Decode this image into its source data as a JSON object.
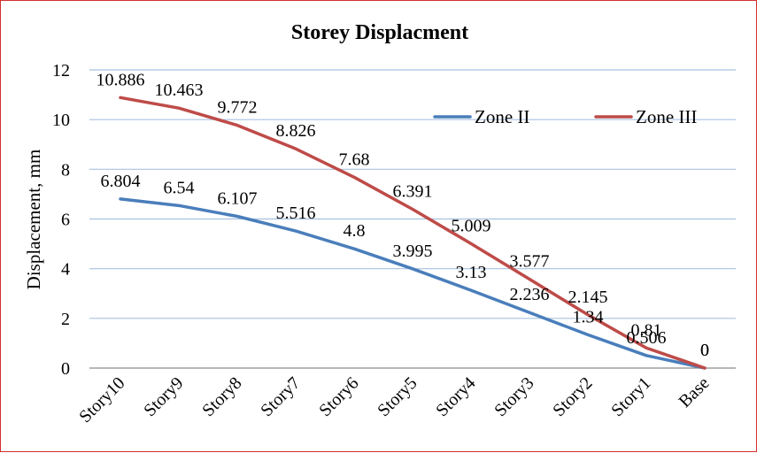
{
  "chart_data": {
    "type": "line",
    "title": "Storey Displacment",
    "xlabel": "",
    "ylabel": "Displacement, mm",
    "categories": [
      "Story10",
      "Story9",
      "Story8",
      "Story7",
      "Story6",
      "Story5",
      "Story4",
      "Story3",
      "Story2",
      "Story1",
      "Base"
    ],
    "ylim": [
      0,
      12
    ],
    "yticks": [
      0,
      2,
      4,
      6,
      8,
      10,
      12
    ],
    "grid": true,
    "legend_position": "top-right",
    "series": [
      {
        "name": "Zone II",
        "color": "#4a7ebb",
        "values": [
          6.804,
          6.54,
          6.107,
          5.516,
          4.8,
          3.995,
          3.13,
          2.236,
          1.34,
          0.506,
          0
        ],
        "labels": [
          "6.804",
          "6.54",
          "6.107",
          "5.516",
          "4.8",
          "3.995",
          "3.13",
          "2.236",
          "1.34",
          "0.506",
          "0"
        ]
      },
      {
        "name": "Zone III",
        "color": "#be4b48",
        "values": [
          10.886,
          10.463,
          9.772,
          8.826,
          7.68,
          6.391,
          5.009,
          3.577,
          2.145,
          0.81,
          0
        ],
        "labels": [
          "10.886",
          "10.463",
          "9.772",
          "8.826",
          "7.68",
          "6.391",
          "5.009",
          "3.577",
          "2.145",
          "0.81",
          "0"
        ]
      }
    ]
  }
}
